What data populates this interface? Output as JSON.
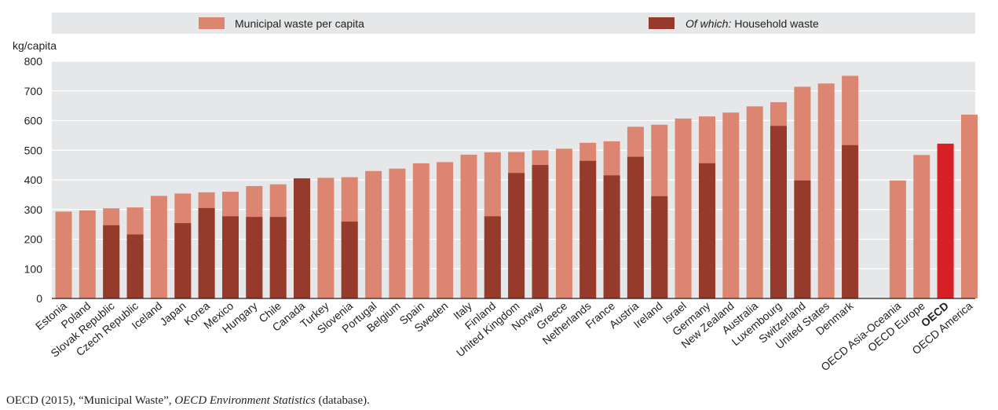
{
  "chart_data": {
    "type": "bar",
    "ylabel": "kg/capita",
    "ylim": [
      0,
      800
    ],
    "yticks": [
      0,
      100,
      200,
      300,
      400,
      500,
      600,
      700,
      800
    ],
    "grid": true,
    "legend_position": "top",
    "series": [
      {
        "name": "Municipal waste per capita",
        "color": "#dc8672"
      },
      {
        "name": "Household waste",
        "name_prefix": "Of which:",
        "color": "#963a2c"
      }
    ],
    "highlight_color": "#d71f26",
    "categories": [
      "Estonia",
      "Poland",
      "Slovak Republic",
      "Czech Republic",
      "Iceland",
      "Japan",
      "Korea",
      "Mexico",
      "Hungary",
      "Chile",
      "Canada",
      "Turkey",
      "Slovenia",
      "Portugal",
      "Belgium",
      "Spain",
      "Sweden",
      "Italy",
      "Finland",
      "United Kingdom",
      "Norway",
      "Greece",
      "Netherlands",
      "France",
      "Austria",
      "Ireland",
      "Israel",
      "Germany",
      "New Zealand",
      "Australia",
      "Luxembourg",
      "Switzerland",
      "United States",
      "Denmark",
      "OECD Asia-Oceania",
      "OECD Europe",
      "OECD",
      "OECD America"
    ],
    "municipal": [
      293,
      297,
      304,
      307,
      346,
      354,
      358,
      360,
      379,
      385,
      405,
      407,
      409,
      430,
      438,
      456,
      460,
      485,
      493,
      494,
      500,
      505,
      525,
      530,
      579,
      586,
      607,
      614,
      627,
      648,
      662,
      714,
      725,
      751,
      398,
      484,
      522,
      620
    ],
    "household": [
      null,
      null,
      247,
      216,
      null,
      254,
      305,
      277,
      275,
      275,
      405,
      null,
      259,
      null,
      null,
      null,
      null,
      null,
      277,
      423,
      450,
      null,
      464,
      415,
      478,
      345,
      null,
      456,
      null,
      null,
      582,
      398,
      null,
      517,
      null,
      null,
      null,
      null
    ],
    "group_gap_before": "OECD Asia-Oceania",
    "highlighted_category": "OECD"
  },
  "source": {
    "prefix": "OECD (2015), “Municipal Waste”, ",
    "title": "OECD Environment Statistics",
    "suffix": " (database)."
  }
}
